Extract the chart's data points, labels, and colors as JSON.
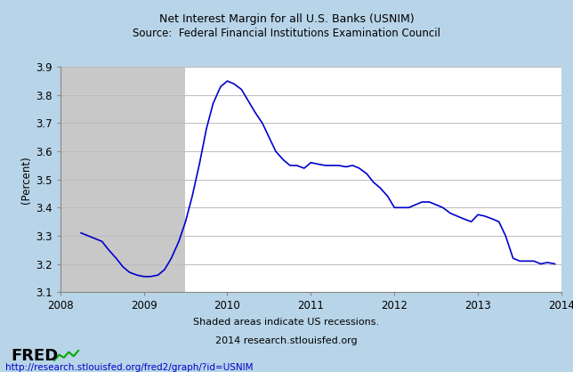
{
  "title_line1": "Net Interest Margin for all U.S. Banks (USNIM)",
  "title_line2": "Source:  Federal Financial Institutions Examination Council",
  "ylabel": "(Percent)",
  "xlabel_note1": "Shaded areas indicate US recessions.",
  "xlabel_note2": "2014 research.stlouisfed.org",
  "url_text": "http://research.stlouisfed.org/fred2/graph/?id=USNIM",
  "ylim": [
    3.1,
    3.9
  ],
  "xlim_start": 2008.0,
  "xlim_end": 2014.0,
  "recession_start": 2008.0,
  "recession_end": 2009.5,
  "yticks": [
    3.1,
    3.2,
    3.3,
    3.4,
    3.5,
    3.6,
    3.7,
    3.8,
    3.9
  ],
  "xticks": [
    2008,
    2009,
    2010,
    2011,
    2012,
    2013,
    2014
  ],
  "line_color": "#0000CC",
  "recession_color": "#C8C8C8",
  "plot_bg": "#FFFFFF",
  "outer_bg": "#B8D4E8",
  "grid_color": "#BBBBBB",
  "data_x": [
    2008.25,
    2008.5,
    2008.58,
    2008.67,
    2008.75,
    2008.83,
    2008.92,
    2009.0,
    2009.08,
    2009.17,
    2009.25,
    2009.33,
    2009.42,
    2009.5,
    2009.58,
    2009.67,
    2009.75,
    2009.83,
    2009.92,
    2010.0,
    2010.08,
    2010.17,
    2010.25,
    2010.33,
    2010.42,
    2010.5,
    2010.58,
    2010.67,
    2010.75,
    2010.83,
    2010.92,
    2011.0,
    2011.08,
    2011.17,
    2011.25,
    2011.33,
    2011.42,
    2011.5,
    2011.58,
    2011.67,
    2011.75,
    2011.83,
    2011.92,
    2012.0,
    2012.08,
    2012.17,
    2012.25,
    2012.33,
    2012.42,
    2012.5,
    2012.58,
    2012.67,
    2012.75,
    2012.83,
    2012.92,
    2013.0,
    2013.08,
    2013.17,
    2013.25,
    2013.33,
    2013.42,
    2013.5,
    2013.58,
    2013.67,
    2013.75,
    2013.83,
    2013.92
  ],
  "data_y": [
    3.31,
    3.28,
    3.25,
    3.22,
    3.19,
    3.17,
    3.16,
    3.155,
    3.155,
    3.16,
    3.18,
    3.22,
    3.28,
    3.35,
    3.44,
    3.56,
    3.68,
    3.77,
    3.83,
    3.85,
    3.84,
    3.82,
    3.78,
    3.74,
    3.7,
    3.65,
    3.6,
    3.57,
    3.55,
    3.55,
    3.54,
    3.56,
    3.555,
    3.55,
    3.55,
    3.55,
    3.545,
    3.55,
    3.54,
    3.52,
    3.49,
    3.47,
    3.44,
    3.4,
    3.4,
    3.4,
    3.41,
    3.42,
    3.42,
    3.41,
    3.4,
    3.38,
    3.37,
    3.36,
    3.35,
    3.375,
    3.37,
    3.36,
    3.35,
    3.3,
    3.22,
    3.21,
    3.21,
    3.21,
    3.2,
    3.205,
    3.2
  ]
}
